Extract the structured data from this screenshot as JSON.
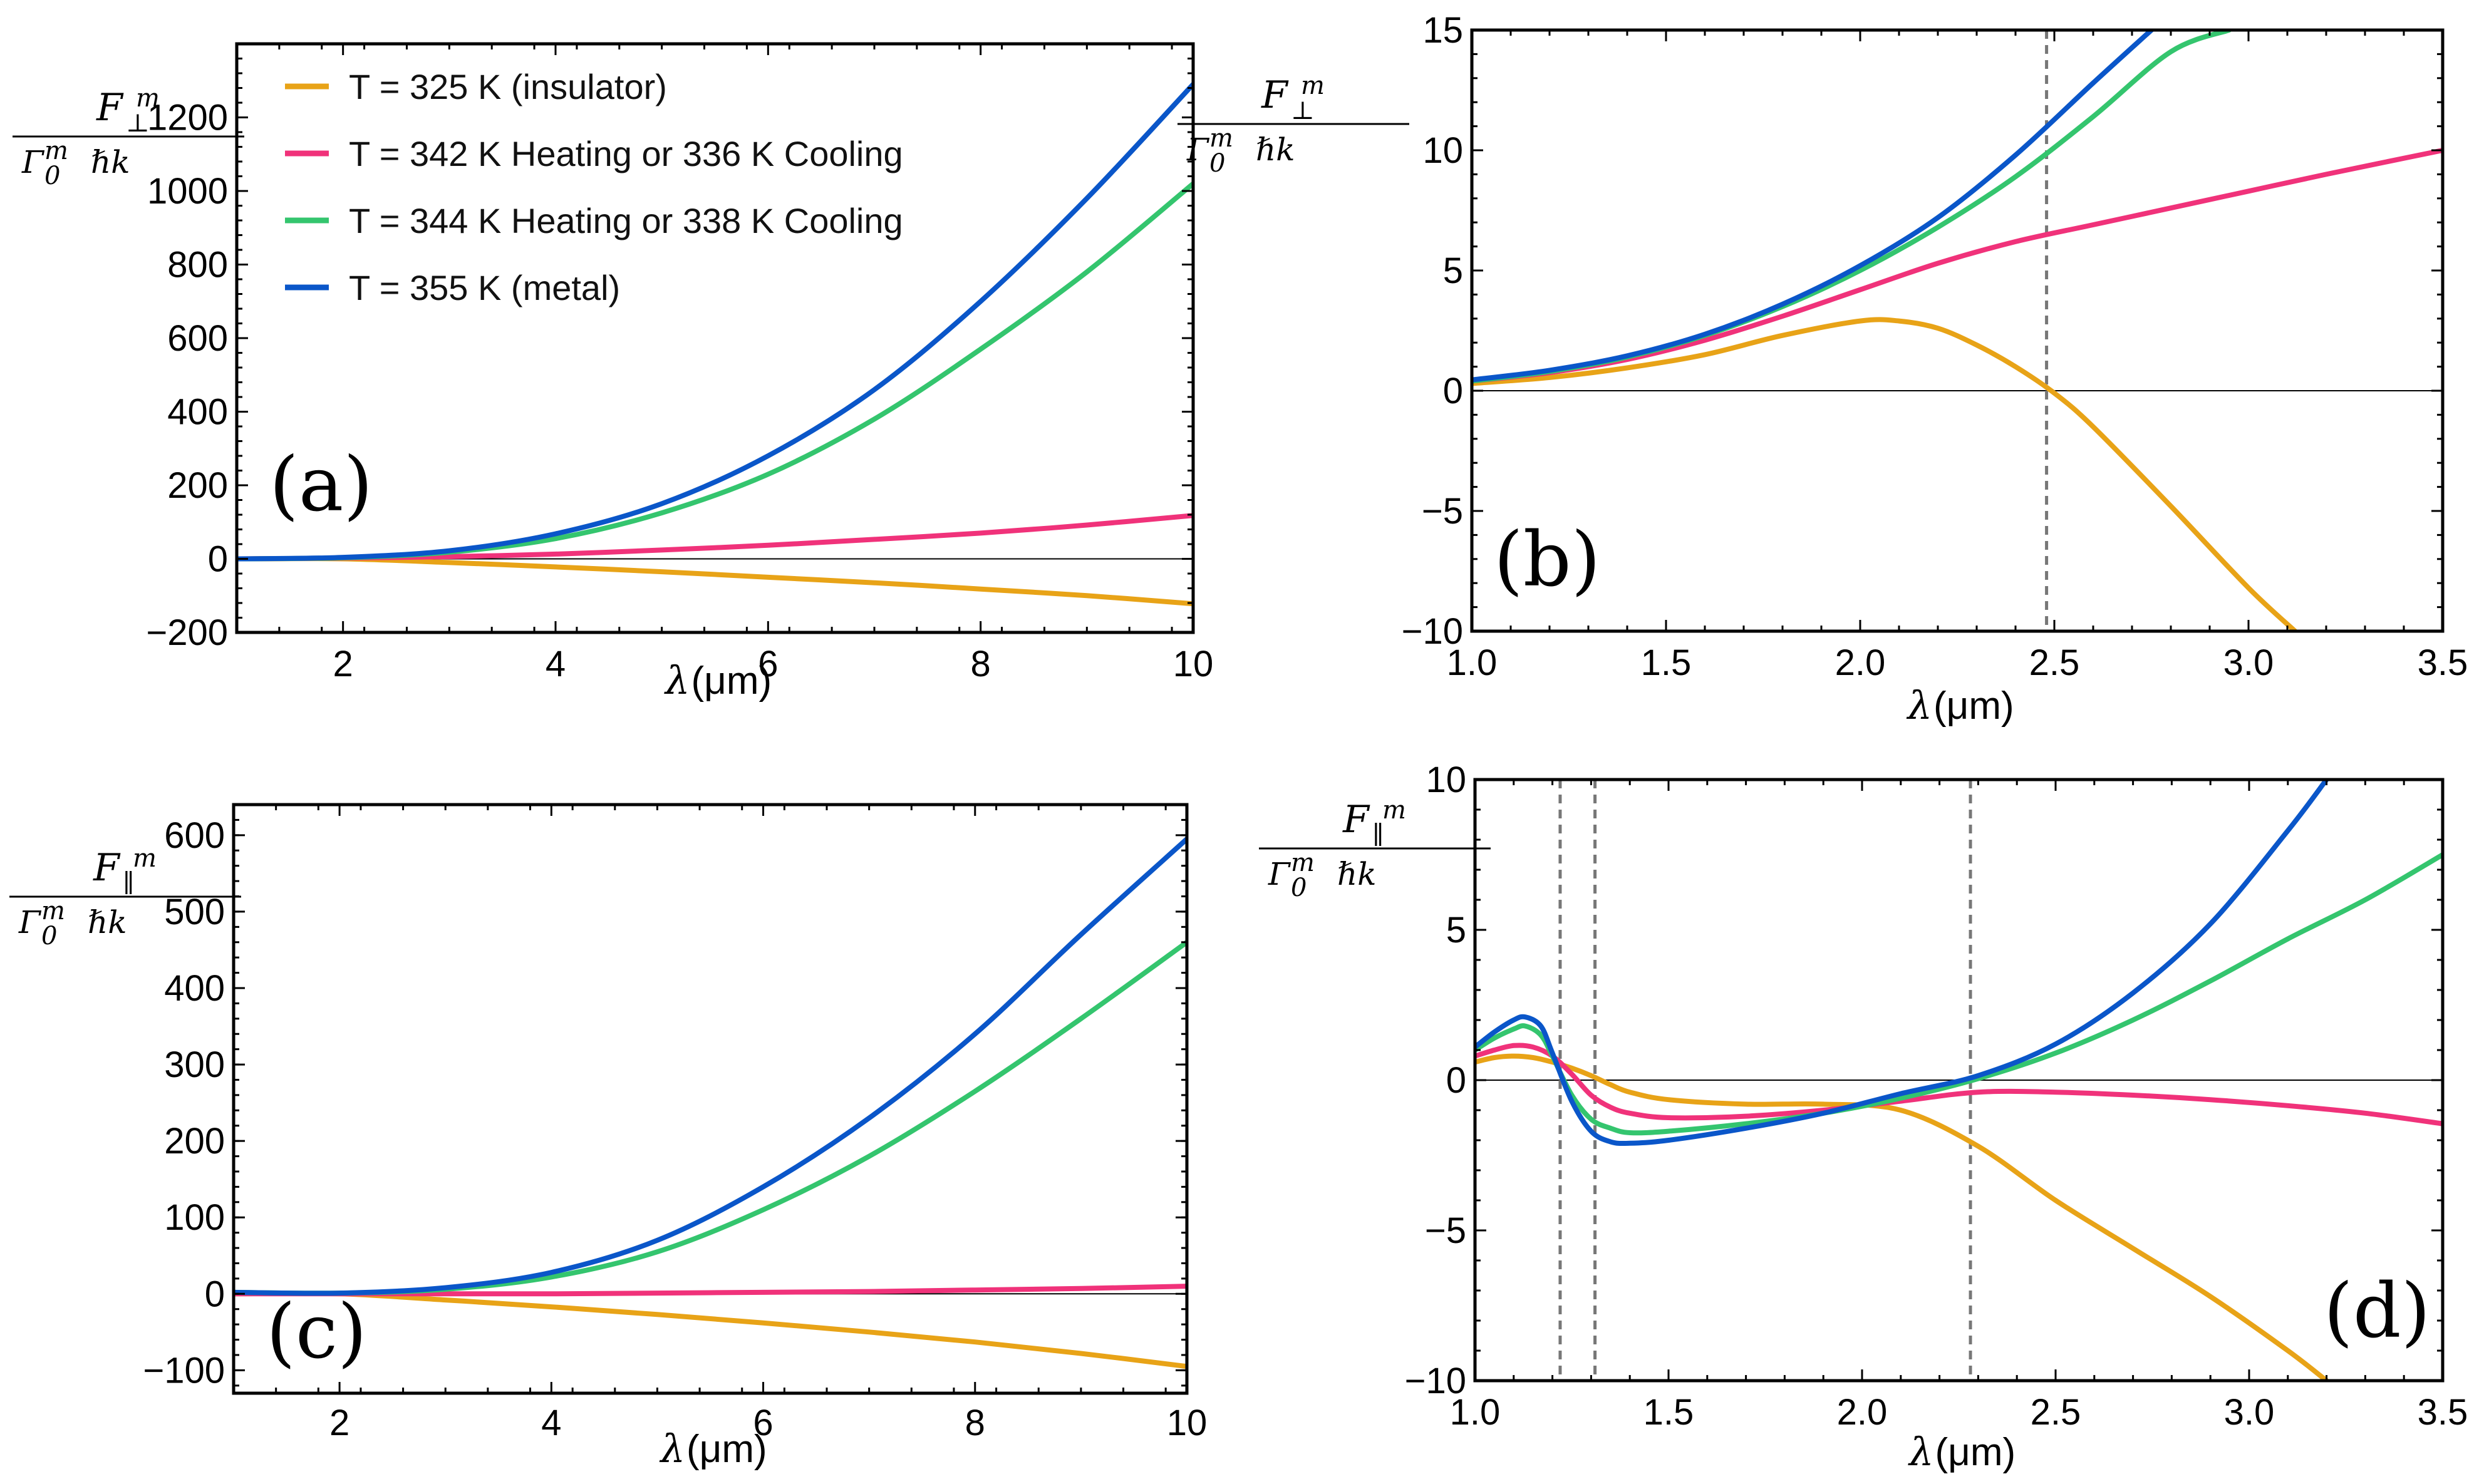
{
  "colors": {
    "insulator": "#E8A317",
    "heating342": "#F0327A",
    "heating344": "#34C56E",
    "metal": "#0A56C9"
  },
  "legend": [
    {
      "key": "insulator",
      "label": "T = 325 K (insulator)"
    },
    {
      "key": "heating342",
      "label": "T = 342 K Heating or 336 K Cooling"
    },
    {
      "key": "heating344",
      "label": "T = 344 K Heating or 338 K Cooling"
    },
    {
      "key": "metal",
      "label": "T = 355 K (metal)"
    }
  ],
  "ylabels": {
    "perp": {
      "numerator": "F",
      "numerator_sub": "⊥",
      "sup": "m",
      "denominator": "Γ",
      "den_sub": "0",
      "den_sup": "m",
      "den_tail": "ℏk"
    },
    "par": {
      "numerator": "F",
      "numerator_sub": "∥",
      "sup": "m",
      "denominator": "Γ",
      "den_sub": "0",
      "den_sup": "m",
      "den_tail": "ℏk"
    }
  },
  "xlabel": {
    "symbol": "λ",
    "unit": "(μm)"
  },
  "chart_data": [
    {
      "id": "a",
      "panel_label": "(a)",
      "type": "line",
      "xlim": [
        1,
        10
      ],
      "ylim": [
        -200,
        1400
      ],
      "xticks": [
        "2",
        "4",
        "6",
        "8",
        "10"
      ],
      "xtick_values": [
        2,
        4,
        6,
        8,
        10
      ],
      "yticks": [
        "−200",
        "0",
        "200",
        "400",
        "600",
        "800",
        "1000",
        "1200"
      ],
      "ytick_values": [
        -200,
        0,
        200,
        400,
        600,
        800,
        1000,
        1200
      ],
      "xlabel": "λ(μm)",
      "series": [
        {
          "key": "insulator",
          "x": [
            1,
            2,
            3,
            4,
            5,
            6,
            7,
            8,
            9,
            10
          ],
          "y": [
            0,
            0,
            -10,
            -22,
            -35,
            -50,
            -65,
            -82,
            -100,
            -122
          ]
        },
        {
          "key": "heating342",
          "x": [
            1,
            2,
            3,
            4,
            5,
            6,
            7,
            8,
            9,
            10
          ],
          "y": [
            0,
            2,
            6,
            13,
            24,
            37,
            53,
            70,
            92,
            118
          ]
        },
        {
          "key": "heating344",
          "x": [
            1,
            2,
            3,
            4,
            5,
            6,
            7,
            8,
            9,
            10
          ],
          "y": [
            0,
            3,
            18,
            55,
            125,
            230,
            380,
            570,
            780,
            1020
          ]
        },
        {
          "key": "metal",
          "x": [
            1,
            2,
            3,
            4,
            5,
            6,
            7,
            8,
            9,
            10
          ],
          "y": [
            0,
            4,
            22,
            68,
            150,
            280,
            460,
            700,
            980,
            1290
          ]
        }
      ]
    },
    {
      "id": "b",
      "panel_label": "(b)",
      "type": "line",
      "xlim": [
        1.0,
        3.5
      ],
      "ylim": [
        -10,
        15
      ],
      "xticks": [
        "1.0",
        "1.5",
        "2.0",
        "2.5",
        "3.0",
        "3.5"
      ],
      "xtick_values": [
        1.0,
        1.5,
        2.0,
        2.5,
        3.0,
        3.5
      ],
      "yticks": [
        "−10",
        "−5",
        "0",
        "5",
        "10",
        "15"
      ],
      "ytick_values": [
        -10,
        -5,
        0,
        5,
        10,
        15
      ],
      "xlabel": "λ(μm)",
      "vlines": [
        2.48
      ],
      "series": [
        {
          "key": "insulator",
          "x": [
            1.0,
            1.2,
            1.4,
            1.6,
            1.8,
            2.0,
            2.1,
            2.2,
            2.3,
            2.4,
            2.5,
            2.6,
            2.8,
            3.0,
            3.12
          ],
          "y": [
            0.3,
            0.55,
            0.95,
            1.5,
            2.3,
            2.9,
            2.9,
            2.6,
            1.9,
            1.0,
            -0.1,
            -1.5,
            -4.8,
            -8.2,
            -10
          ]
        },
        {
          "key": "heating342",
          "x": [
            1.0,
            1.2,
            1.4,
            1.6,
            1.8,
            2.0,
            2.2,
            2.4,
            2.6,
            2.8,
            3.0,
            3.2,
            3.5
          ],
          "y": [
            0.4,
            0.75,
            1.3,
            2.1,
            3.1,
            4.2,
            5.3,
            6.2,
            6.9,
            7.6,
            8.3,
            9.0,
            10
          ]
        },
        {
          "key": "heating344",
          "x": [
            1.0,
            1.2,
            1.4,
            1.6,
            1.8,
            2.0,
            2.2,
            2.4,
            2.6,
            2.8,
            2.95
          ],
          "y": [
            0.4,
            0.8,
            1.4,
            2.3,
            3.5,
            5.0,
            6.8,
            8.9,
            11.4,
            14.1,
            15
          ]
        },
        {
          "key": "metal",
          "x": [
            1.0,
            1.2,
            1.4,
            1.6,
            1.8,
            2.0,
            2.2,
            2.4,
            2.6,
            2.75
          ],
          "y": [
            0.45,
            0.85,
            1.45,
            2.35,
            3.6,
            5.2,
            7.2,
            9.8,
            12.8,
            15
          ]
        }
      ]
    },
    {
      "id": "c",
      "panel_label": "(c)",
      "type": "line",
      "xlim": [
        1,
        10
      ],
      "ylim": [
        -130,
        640
      ],
      "xticks": [
        "2",
        "4",
        "6",
        "8",
        "10"
      ],
      "xtick_values": [
        2,
        4,
        6,
        8,
        10
      ],
      "yticks": [
        "−100",
        "0",
        "100",
        "200",
        "300",
        "400",
        "500",
        "600"
      ],
      "ytick_values": [
        -100,
        0,
        100,
        200,
        300,
        400,
        500,
        600
      ],
      "xlabel": "λ(μm)",
      "series": [
        {
          "key": "insulator",
          "x": [
            1,
            2,
            3,
            4,
            5,
            6,
            7,
            8,
            9,
            10
          ],
          "y": [
            0,
            0,
            -8,
            -17,
            -27,
            -38,
            -50,
            -63,
            -78,
            -95
          ]
        },
        {
          "key": "heating342",
          "x": [
            1,
            2,
            3,
            4,
            5,
            6,
            7,
            8,
            9,
            10
          ],
          "y": [
            0,
            0,
            0,
            0,
            1,
            2,
            3,
            5,
            7,
            10
          ]
        },
        {
          "key": "heating344",
          "x": [
            1,
            2,
            3,
            4,
            5,
            6,
            7,
            8,
            9,
            10
          ],
          "y": [
            2,
            1,
            6,
            22,
            55,
            110,
            180,
            265,
            360,
            460
          ]
        },
        {
          "key": "metal",
          "x": [
            1,
            2,
            3,
            4,
            5,
            6,
            7,
            8,
            9,
            10
          ],
          "y": [
            2,
            1,
            8,
            28,
            70,
            140,
            230,
            340,
            470,
            595
          ]
        }
      ]
    },
    {
      "id": "d",
      "panel_label": "(d)",
      "type": "line",
      "xlim": [
        1.0,
        3.5
      ],
      "ylim": [
        -10,
        10
      ],
      "xticks": [
        "1.0",
        "1.5",
        "2.0",
        "2.5",
        "3.0",
        "3.5"
      ],
      "xtick_values": [
        1.0,
        1.5,
        2.0,
        2.5,
        3.0,
        3.5
      ],
      "yticks": [
        "−10",
        "−5",
        "0",
        "5",
        "10"
      ],
      "ytick_values": [
        -10,
        -5,
        0,
        5,
        10
      ],
      "xlabel": "λ(μm)",
      "vlines": [
        1.22,
        1.31,
        2.28
      ],
      "series": [
        {
          "key": "insulator",
          "x": [
            1.0,
            1.05,
            1.1,
            1.15,
            1.2,
            1.25,
            1.3,
            1.35,
            1.4,
            1.5,
            1.7,
            1.9,
            2.1,
            2.3,
            2.5,
            2.7,
            2.9,
            3.1,
            3.2
          ],
          "y": [
            0.6,
            0.75,
            0.8,
            0.75,
            0.6,
            0.4,
            0.15,
            -0.15,
            -0.4,
            -0.65,
            -0.8,
            -0.8,
            -1.0,
            -2.2,
            -4.0,
            -5.6,
            -7.2,
            -9.0,
            -10
          ]
        },
        {
          "key": "heating342",
          "x": [
            1.0,
            1.05,
            1.1,
            1.15,
            1.2,
            1.25,
            1.3,
            1.35,
            1.4,
            1.5,
            1.7,
            1.9,
            2.1,
            2.3,
            2.5,
            2.7,
            2.9,
            3.1,
            3.3,
            3.5
          ],
          "y": [
            0.8,
            1.0,
            1.15,
            1.1,
            0.8,
            0.2,
            -0.5,
            -0.9,
            -1.1,
            -1.25,
            -1.2,
            -1.0,
            -0.7,
            -0.4,
            -0.4,
            -0.5,
            -0.65,
            -0.85,
            -1.1,
            -1.45
          ]
        },
        {
          "key": "heating344",
          "x": [
            1.0,
            1.05,
            1.1,
            1.13,
            1.17,
            1.2,
            1.25,
            1.3,
            1.35,
            1.4,
            1.5,
            1.7,
            1.9,
            2.1,
            2.3,
            2.5,
            2.7,
            2.9,
            3.1,
            3.3,
            3.5
          ],
          "y": [
            1.0,
            1.4,
            1.7,
            1.8,
            1.5,
            0.8,
            -0.5,
            -1.3,
            -1.6,
            -1.75,
            -1.7,
            -1.45,
            -1.1,
            -0.6,
            0.05,
            0.9,
            2.0,
            3.3,
            4.7,
            6.0,
            7.5
          ]
        },
        {
          "key": "metal",
          "x": [
            1.0,
            1.05,
            1.1,
            1.13,
            1.17,
            1.2,
            1.25,
            1.3,
            1.35,
            1.4,
            1.5,
            1.7,
            1.9,
            2.1,
            2.3,
            2.5,
            2.7,
            2.9,
            3.1,
            3.2
          ],
          "y": [
            1.1,
            1.6,
            2.0,
            2.1,
            1.8,
            0.9,
            -0.7,
            -1.7,
            -2.05,
            -2.1,
            -2.0,
            -1.6,
            -1.1,
            -0.45,
            0.15,
            1.2,
            2.9,
            5.2,
            8.3,
            10
          ]
        }
      ]
    }
  ]
}
